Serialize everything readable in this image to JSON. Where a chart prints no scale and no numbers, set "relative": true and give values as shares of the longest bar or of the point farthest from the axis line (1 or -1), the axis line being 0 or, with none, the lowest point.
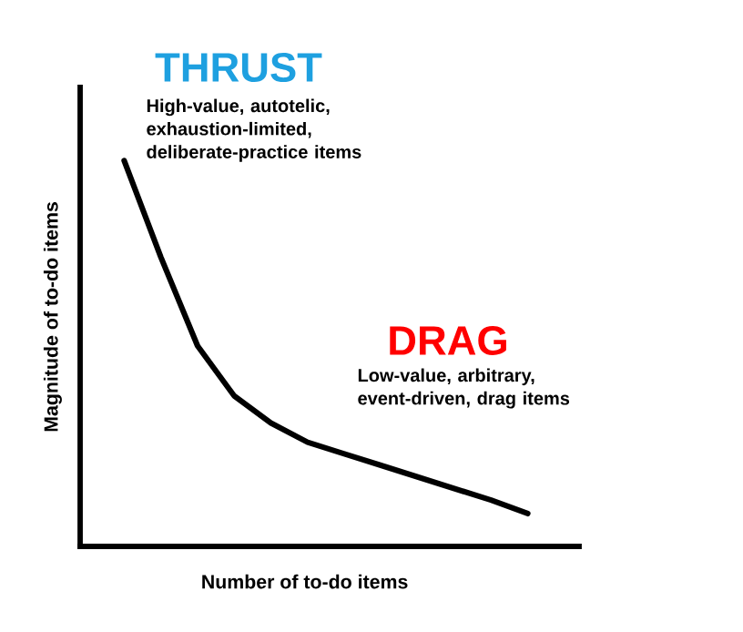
{
  "chart_data": {
    "type": "line",
    "relative": true,
    "xlabel": "Number of to-do items",
    "ylabel": "Magnitude of to-do items",
    "categories": [
      null,
      null,
      null,
      null,
      null,
      null,
      null,
      null,
      null,
      null,
      null,
      null
    ],
    "series": [
      {
        "color": "#000000",
        "values": [
          1.0,
          0.75,
          0.52,
          0.39,
          0.32,
          0.27,
          0.24,
          0.21,
          0.18,
          0.15,
          0.12,
          0.085
        ]
      }
    ],
    "annotations": [
      "THRUST",
      "High-value, autotelic, exhaustion-limited, deliberate-practice items",
      "DRAG",
      "Low-value, arbitrary, event-driven, drag items"
    ],
    "marker": "none",
    "line_style": "solid"
  }
}
